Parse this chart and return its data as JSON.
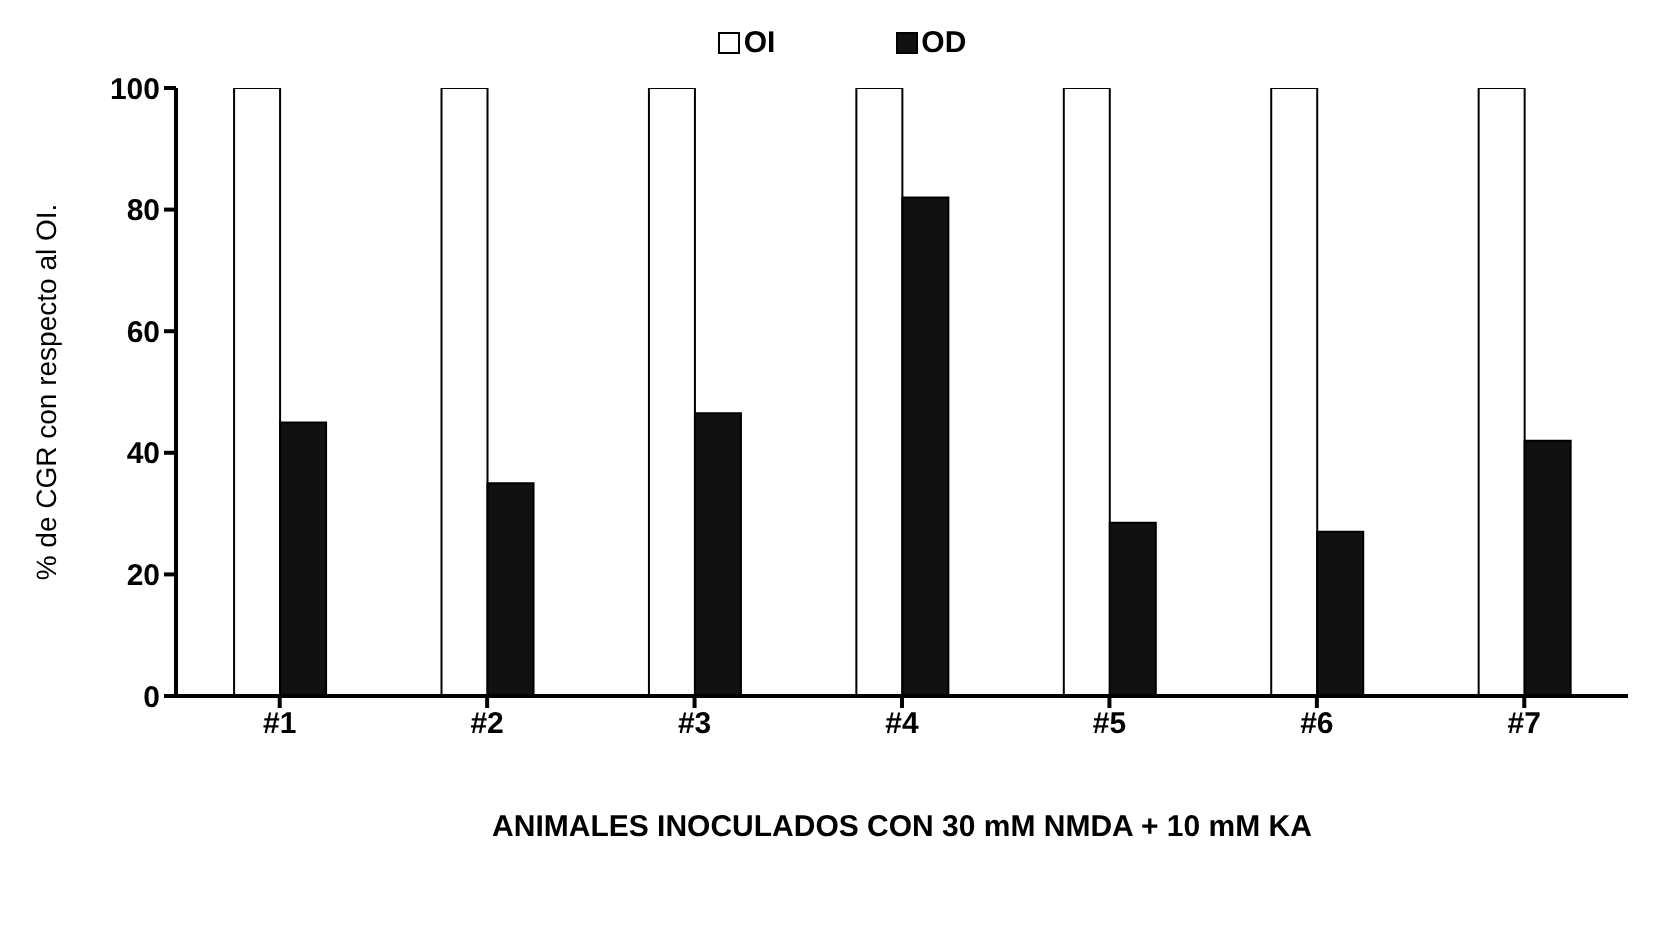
{
  "chart_data": {
    "type": "bar",
    "xlabel": "ANIMALES INOCULADOS CON 30 mM  NMDA + 10 mM KA",
    "ylabel": "% de CGR con respecto al OI.",
    "categories": [
      "#1",
      "#2",
      "#3",
      "#4",
      "#5",
      "#6",
      "#7"
    ],
    "series": [
      {
        "name": "OI",
        "color": "#ffffff",
        "values": [
          100,
          100,
          100,
          100,
          100,
          100,
          100
        ]
      },
      {
        "name": "OD",
        "color": "#111111",
        "values": [
          45,
          35,
          46.5,
          82,
          28.5,
          27,
          42
        ]
      }
    ],
    "ylim": [
      0,
      100
    ],
    "yticks": [
      0,
      20,
      40,
      60,
      80,
      100
    ],
    "grid": false,
    "legend": "top"
  }
}
